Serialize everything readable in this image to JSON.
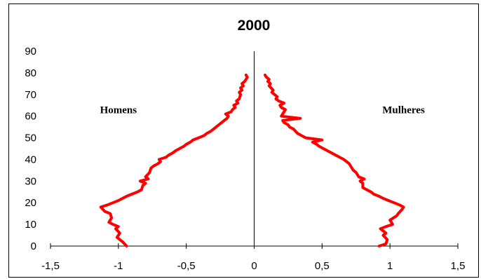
{
  "chart_data": {
    "type": "line",
    "title": "2000",
    "xlabel": "",
    "ylabel": "",
    "xlim": [
      -1.5,
      1.5
    ],
    "ylim": [
      0,
      90
    ],
    "xticks": [
      -1.5,
      -1,
      -0.5,
      0,
      0.5,
      1,
      1.5
    ],
    "xtick_labels": [
      "-1,5",
      "-1",
      "-0,5",
      "0",
      "0,5",
      "1",
      "1,5"
    ],
    "yticks": [
      0,
      10,
      20,
      30,
      40,
      50,
      60,
      70,
      80,
      90
    ],
    "ytick_labels": [
      "0",
      "10",
      "20",
      "30",
      "40",
      "50",
      "60",
      "70",
      "80",
      "90"
    ],
    "grid": false,
    "annotations": [
      {
        "text": "Homens",
        "x": -1.0,
        "y": 63
      },
      {
        "text": "Mulheres",
        "x": 1.1,
        "y": 63
      }
    ],
    "series": [
      {
        "color": "#ff0000",
        "points": [
          [
            -0.94,
            0
          ],
          [
            -0.97,
            2
          ],
          [
            -1.01,
            4
          ],
          [
            -0.99,
            6
          ],
          [
            -1.02,
            8
          ],
          [
            -1.0,
            9
          ],
          [
            -1.04,
            10
          ],
          [
            -1.07,
            11
          ],
          [
            -1.05,
            13
          ],
          [
            -1.06,
            15
          ],
          [
            -1.1,
            16
          ],
          [
            -1.13,
            18
          ],
          [
            -1.08,
            19
          ],
          [
            -1.04,
            20
          ],
          [
            -1.0,
            21
          ],
          [
            -0.97,
            22
          ],
          [
            -0.94,
            23
          ],
          [
            -0.9,
            24
          ],
          [
            -0.86,
            25
          ],
          [
            -0.83,
            26
          ],
          [
            -0.82,
            28
          ],
          [
            -0.8,
            29
          ],
          [
            -0.84,
            30
          ],
          [
            -0.78,
            31
          ],
          [
            -0.8,
            32
          ],
          [
            -0.77,
            34
          ],
          [
            -0.76,
            36
          ],
          [
            -0.74,
            37
          ],
          [
            -0.71,
            38
          ],
          [
            -0.69,
            39
          ],
          [
            -0.7,
            40
          ],
          [
            -0.65,
            41
          ],
          [
            -0.63,
            42
          ],
          [
            -0.6,
            43
          ],
          [
            -0.58,
            44
          ],
          [
            -0.55,
            45
          ],
          [
            -0.52,
            46
          ],
          [
            -0.5,
            47
          ],
          [
            -0.47,
            48
          ],
          [
            -0.45,
            49
          ],
          [
            -0.41,
            50
          ],
          [
            -0.37,
            51
          ],
          [
            -0.35,
            52
          ],
          [
            -0.32,
            53
          ],
          [
            -0.3,
            54
          ],
          [
            -0.28,
            55
          ],
          [
            -0.26,
            56
          ],
          [
            -0.24,
            57
          ],
          [
            -0.22,
            58
          ],
          [
            -0.2,
            59
          ],
          [
            -0.19,
            60
          ],
          [
            -0.21,
            61
          ],
          [
            -0.17,
            62
          ],
          [
            -0.16,
            63
          ],
          [
            -0.14,
            64
          ],
          [
            -0.15,
            65
          ],
          [
            -0.12,
            66
          ],
          [
            -0.13,
            67
          ],
          [
            -0.11,
            68
          ],
          [
            -0.1,
            70
          ],
          [
            -0.11,
            71
          ],
          [
            -0.09,
            72
          ],
          [
            -0.1,
            73
          ],
          [
            -0.08,
            74
          ],
          [
            -0.09,
            75
          ],
          [
            -0.07,
            76
          ],
          [
            -0.06,
            77
          ],
          [
            -0.05,
            78
          ],
          [
            -0.06,
            79
          ]
        ]
      },
      {
        "color": "#ff0000",
        "points": [
          [
            0.92,
            0
          ],
          [
            0.97,
            1
          ],
          [
            0.98,
            3
          ],
          [
            0.95,
            5
          ],
          [
            0.97,
            6
          ],
          [
            0.93,
            8
          ],
          [
            0.97,
            9
          ],
          [
            1.02,
            10
          ],
          [
            1.0,
            12
          ],
          [
            1.05,
            14
          ],
          [
            1.06,
            15
          ],
          [
            1.09,
            17
          ],
          [
            1.1,
            18
          ],
          [
            1.07,
            19
          ],
          [
            1.03,
            20
          ],
          [
            0.99,
            21
          ],
          [
            0.95,
            22
          ],
          [
            0.92,
            23
          ],
          [
            0.88,
            24
          ],
          [
            0.86,
            25
          ],
          [
            0.83,
            26
          ],
          [
            0.8,
            27
          ],
          [
            0.8,
            29
          ],
          [
            0.78,
            30
          ],
          [
            0.81,
            31
          ],
          [
            0.77,
            32
          ],
          [
            0.75,
            34
          ],
          [
            0.73,
            35
          ],
          [
            0.71,
            37
          ],
          [
            0.7,
            38
          ],
          [
            0.68,
            39
          ],
          [
            0.66,
            40
          ],
          [
            0.63,
            41
          ],
          [
            0.6,
            42
          ],
          [
            0.57,
            43
          ],
          [
            0.54,
            44
          ],
          [
            0.51,
            45
          ],
          [
            0.48,
            46
          ],
          [
            0.46,
            47
          ],
          [
            0.43,
            48
          ],
          [
            0.5,
            49
          ],
          [
            0.38,
            50
          ],
          [
            0.35,
            51
          ],
          [
            0.32,
            52
          ],
          [
            0.29,
            54
          ],
          [
            0.26,
            55
          ],
          [
            0.25,
            56
          ],
          [
            0.22,
            57
          ],
          [
            0.21,
            58
          ],
          [
            0.34,
            59
          ],
          [
            0.2,
            60
          ],
          [
            0.22,
            62
          ],
          [
            0.23,
            63
          ],
          [
            0.2,
            64
          ],
          [
            0.19,
            65
          ],
          [
            0.22,
            66
          ],
          [
            0.18,
            67
          ],
          [
            0.16,
            68
          ],
          [
            0.17,
            69
          ],
          [
            0.15,
            70
          ],
          [
            0.13,
            71
          ],
          [
            0.14,
            72
          ],
          [
            0.11,
            74
          ],
          [
            0.12,
            75
          ],
          [
            0.1,
            76
          ],
          [
            0.11,
            77
          ],
          [
            0.09,
            78
          ],
          [
            0.08,
            79
          ]
        ]
      }
    ]
  }
}
